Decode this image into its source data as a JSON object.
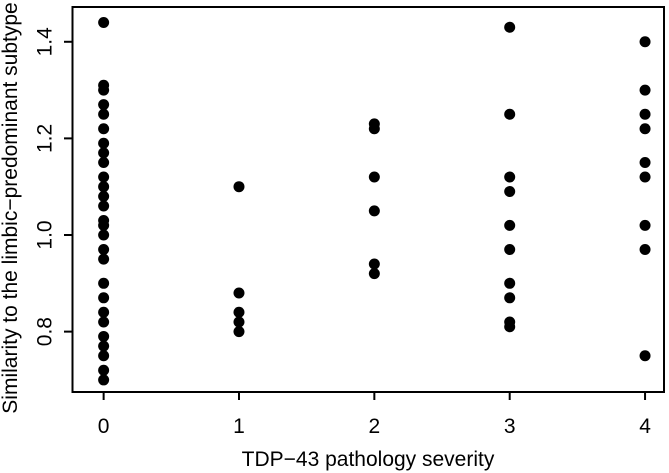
{
  "figure": {
    "background": "#ffffff",
    "plot_background": "#ffffff",
    "frame_color": "#000000"
  },
  "chart_data": {
    "type": "scatter",
    "title": "",
    "xlabel": "TDP−43 pathology severity",
    "ylabel": "Similarity to the limbic−predominant subtype",
    "xlim": [
      -0.23,
      4.14
    ],
    "ylim": [
      0.675,
      1.472
    ],
    "xticks": [
      0,
      1,
      2,
      3,
      4
    ],
    "xtick_labels": [
      "0",
      "1",
      "2",
      "3",
      "4"
    ],
    "yticks": [
      0.8,
      1.0,
      1.2,
      1.4
    ],
    "ytick_labels": [
      "0.8",
      "1.0",
      "1.2",
      "1.4"
    ],
    "grid": false,
    "legend": "none",
    "marker": {
      "shape": "filled-circle",
      "color": "#000000",
      "radius_px": 5.5
    },
    "series": [
      {
        "name": "severity-0",
        "x": 0,
        "values": [
          1.44,
          1.31,
          1.3,
          1.27,
          1.25,
          1.22,
          1.19,
          1.17,
          1.15,
          1.12,
          1.1,
          1.08,
          1.06,
          1.03,
          1.02,
          1.0,
          0.97,
          0.95,
          0.9,
          0.87,
          0.84,
          0.82,
          0.79,
          0.77,
          0.75,
          0.72,
          0.7
        ]
      },
      {
        "name": "severity-1",
        "x": 1,
        "values": [
          1.1,
          0.88,
          0.84,
          0.82,
          0.8
        ]
      },
      {
        "name": "severity-2",
        "x": 2,
        "values": [
          1.23,
          1.22,
          1.12,
          1.05,
          0.94,
          0.92
        ]
      },
      {
        "name": "severity-3",
        "x": 3,
        "values": [
          1.43,
          1.25,
          1.12,
          1.09,
          1.02,
          0.97,
          0.9,
          0.87,
          0.82,
          0.81
        ]
      },
      {
        "name": "severity-4",
        "x": 4,
        "values": [
          1.4,
          1.3,
          1.25,
          1.22,
          1.15,
          1.12,
          1.02,
          0.97,
          0.75
        ]
      }
    ]
  }
}
